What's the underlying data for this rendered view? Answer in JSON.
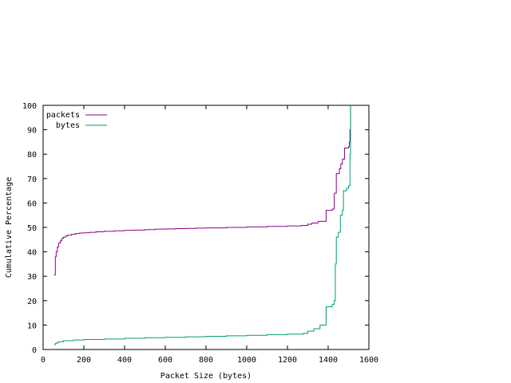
{
  "chart_data": {
    "type": "line",
    "title": "",
    "xlabel": "Packet Size (bytes)",
    "ylabel": "Cumulative Percentage",
    "xlim": [
      0,
      1600
    ],
    "ylim": [
      0,
      100
    ],
    "x_ticks": [
      0,
      200,
      400,
      600,
      800,
      1000,
      1200,
      1400,
      1600
    ],
    "y_ticks": [
      0,
      10,
      20,
      30,
      40,
      50,
      60,
      70,
      80,
      90,
      100
    ],
    "grid": false,
    "legend": "top-left",
    "series": [
      {
        "name": "packets",
        "color": "#8b008b",
        "step": true,
        "points": [
          [
            54,
            30.5
          ],
          [
            60,
            38
          ],
          [
            64,
            40
          ],
          [
            70,
            42
          ],
          [
            76,
            43.5
          ],
          [
            84,
            44.5
          ],
          [
            92,
            45.5
          ],
          [
            100,
            46
          ],
          [
            110,
            46.5
          ],
          [
            120,
            46.8
          ],
          [
            140,
            47.2
          ],
          [
            160,
            47.5
          ],
          [
            180,
            47.7
          ],
          [
            200,
            47.8
          ],
          [
            230,
            48
          ],
          [
            260,
            48.2
          ],
          [
            300,
            48.4
          ],
          [
            350,
            48.6
          ],
          [
            400,
            48.8
          ],
          [
            450,
            48.9
          ],
          [
            500,
            49.1
          ],
          [
            550,
            49.3
          ],
          [
            600,
            49.4
          ],
          [
            650,
            49.5
          ],
          [
            700,
            49.6
          ],
          [
            750,
            49.7
          ],
          [
            800,
            49.8
          ],
          [
            900,
            50
          ],
          [
            1000,
            50.2
          ],
          [
            1100,
            50.4
          ],
          [
            1200,
            50.6
          ],
          [
            1270,
            50.8
          ],
          [
            1300,
            51.3
          ],
          [
            1320,
            51.8
          ],
          [
            1350,
            52.5
          ],
          [
            1390,
            57
          ],
          [
            1420,
            57.5
          ],
          [
            1430,
            64
          ],
          [
            1440,
            72
          ],
          [
            1455,
            74
          ],
          [
            1462,
            76
          ],
          [
            1470,
            78
          ],
          [
            1480,
            82.5
          ],
          [
            1500,
            83
          ],
          [
            1504,
            85
          ],
          [
            1507,
            90
          ],
          [
            1510,
            100
          ]
        ]
      },
      {
        "name": "bytes",
        "color": "#009e73",
        "step": true,
        "points": [
          [
            54,
            2
          ],
          [
            60,
            2.5
          ],
          [
            70,
            3
          ],
          [
            80,
            3.2
          ],
          [
            100,
            3.6
          ],
          [
            150,
            3.9
          ],
          [
            200,
            4.1
          ],
          [
            300,
            4.3
          ],
          [
            400,
            4.6
          ],
          [
            500,
            4.8
          ],
          [
            600,
            5
          ],
          [
            700,
            5.2
          ],
          [
            800,
            5.4
          ],
          [
            900,
            5.6
          ],
          [
            1000,
            5.8
          ],
          [
            1100,
            6.1
          ],
          [
            1200,
            6.3
          ],
          [
            1280,
            6.6
          ],
          [
            1300,
            7.5
          ],
          [
            1330,
            8.5
          ],
          [
            1360,
            10
          ],
          [
            1390,
            17.5
          ],
          [
            1420,
            18.5
          ],
          [
            1430,
            20
          ],
          [
            1435,
            35
          ],
          [
            1440,
            46
          ],
          [
            1450,
            48
          ],
          [
            1460,
            55
          ],
          [
            1470,
            57
          ],
          [
            1475,
            65
          ],
          [
            1490,
            66
          ],
          [
            1500,
            67
          ],
          [
            1507,
            80
          ],
          [
            1510,
            100
          ]
        ]
      }
    ]
  }
}
